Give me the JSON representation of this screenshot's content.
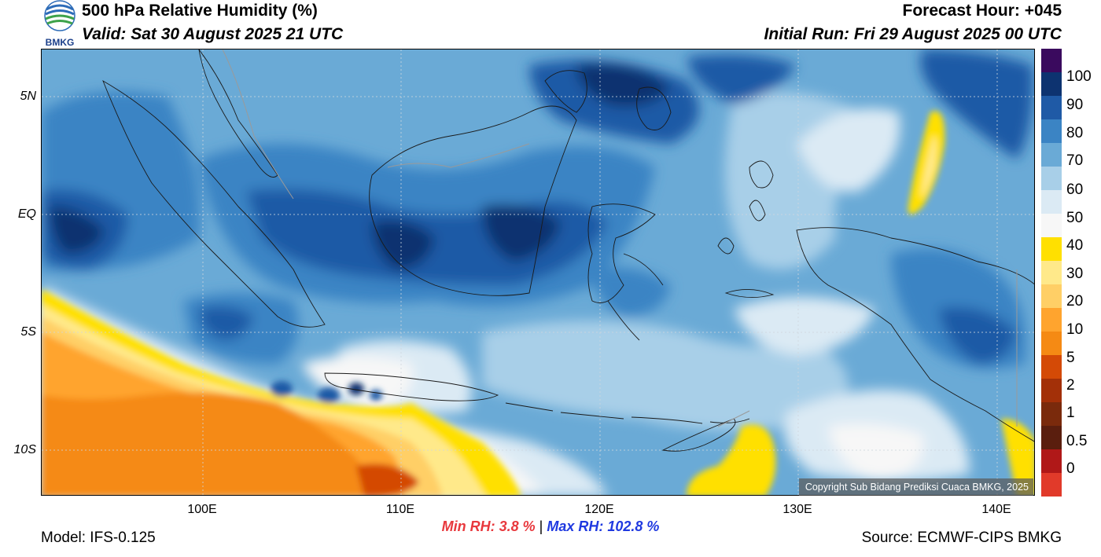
{
  "header": {
    "title": "500 hPa Relative Humidity (%)",
    "valid": "Valid: Sat 30 August 2025 21 UTC",
    "forecast_hour": "Forecast Hour: +045",
    "initial_run": "Initial Run: Fri 29 August 2025 00 UTC"
  },
  "logo": {
    "text": "BMKG",
    "icon": "bmkg-logo-icon"
  },
  "map": {
    "lat_labels": [
      "5N",
      "EQ",
      "5S",
      "10S"
    ],
    "lon_labels": [
      "100E",
      "110E",
      "120E",
      "130E",
      "140E"
    ],
    "copyright": "Copyright Sub Bidang Prediksi Cuaca BMKG, 2025"
  },
  "colorbar": {
    "labels": [
      "100",
      "90",
      "80",
      "70",
      "60",
      "50",
      "40",
      "30",
      "20",
      "10",
      "5",
      "2",
      "1",
      "0.5",
      "0"
    ],
    "colors": [
      "#3a0a5e",
      "#0d3370",
      "#1f5aa6",
      "#3b84c4",
      "#6aaad6",
      "#a8cfe8",
      "#dbeaf4",
      "#f7f7f7",
      "#ffe000",
      "#ffe98a",
      "#ffcf66",
      "#ffa42e",
      "#f58a14",
      "#d44a06",
      "#a33008",
      "#7a2a0c",
      "#5a1e0e",
      "#b01818",
      "#e13a2a"
    ]
  },
  "stats": {
    "min": "Min RH:   3.8 %",
    "separator": "|",
    "max": "Max RH: 102.8 %"
  },
  "footer": {
    "model": "Model: IFS-0.125",
    "source": "Source: ECMWF-CIPS BMKG"
  }
}
